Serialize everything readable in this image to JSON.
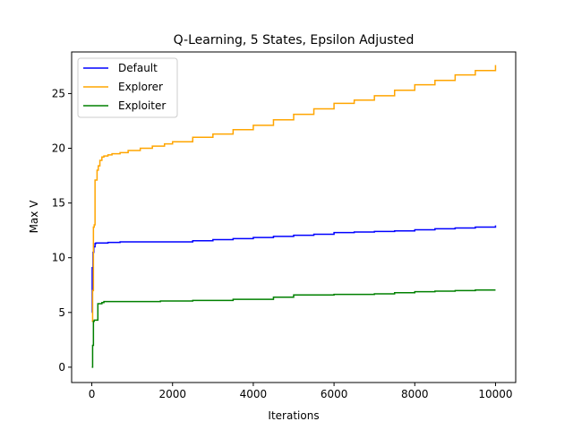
{
  "chart_data": {
    "type": "line",
    "title": "Q-Learning, 5 States, Epsilon Adjusted",
    "xlabel": "Iterations",
    "ylabel": "Max V",
    "xlim": [
      -500,
      10500
    ],
    "ylim": [
      -1.4,
      28.8
    ],
    "xticks": [
      0,
      2000,
      4000,
      6000,
      8000,
      10000
    ],
    "yticks": [
      0,
      5,
      10,
      15,
      20,
      25
    ],
    "grid": false,
    "legend_position": "top-left",
    "series": [
      {
        "name": "Default",
        "color": "#0000ff",
        "step": true,
        "x": [
          0,
          10,
          20,
          30,
          50,
          80,
          100,
          200,
          400,
          700,
          1000,
          1500,
          2000,
          2500,
          3000,
          3500,
          4000,
          4500,
          5000,
          5500,
          6000,
          6500,
          7000,
          7500,
          8000,
          8500,
          9000,
          9500,
          10000
        ],
        "y": [
          5.0,
          9.1,
          9.0,
          10.5,
          11.0,
          11.3,
          11.35,
          11.35,
          11.4,
          11.45,
          11.45,
          11.45,
          11.45,
          11.55,
          11.65,
          11.75,
          11.85,
          11.95,
          12.05,
          12.15,
          12.3,
          12.35,
          12.4,
          12.45,
          12.55,
          12.65,
          12.72,
          12.8,
          12.95
        ]
      },
      {
        "name": "Explorer",
        "color": "#ffa500",
        "step": true,
        "x": [
          0,
          20,
          40,
          60,
          80,
          100,
          130,
          160,
          200,
          250,
          300,
          400,
          500,
          700,
          900,
          1200,
          1500,
          1800,
          2000,
          2500,
          3000,
          3500,
          4000,
          4500,
          5000,
          5500,
          6000,
          6500,
          7000,
          7500,
          8000,
          8500,
          9000,
          9500,
          10000
        ],
        "y": [
          4.2,
          7.0,
          12.8,
          13.0,
          17.1,
          17.1,
          18.0,
          18.4,
          18.9,
          19.2,
          19.3,
          19.4,
          19.5,
          19.6,
          19.8,
          20.0,
          20.2,
          20.4,
          20.6,
          21.0,
          21.3,
          21.7,
          22.1,
          22.6,
          23.1,
          23.6,
          24.1,
          24.4,
          24.8,
          25.3,
          25.8,
          26.2,
          26.7,
          27.1,
          27.6
        ]
      },
      {
        "name": "Exploiter",
        "color": "#008000",
        "step": true,
        "x": [
          0,
          20,
          40,
          60,
          100,
          150,
          250,
          300,
          500,
          1000,
          1700,
          2500,
          3500,
          4500,
          5000,
          6000,
          7000,
          7500,
          8000,
          8500,
          9000,
          9500,
          10000
        ],
        "y": [
          0.0,
          2.0,
          4.2,
          4.3,
          4.3,
          5.8,
          5.9,
          6.0,
          6.0,
          6.0,
          6.05,
          6.1,
          6.2,
          6.4,
          6.6,
          6.65,
          6.7,
          6.8,
          6.9,
          6.95,
          7.0,
          7.05,
          7.05
        ]
      }
    ]
  }
}
